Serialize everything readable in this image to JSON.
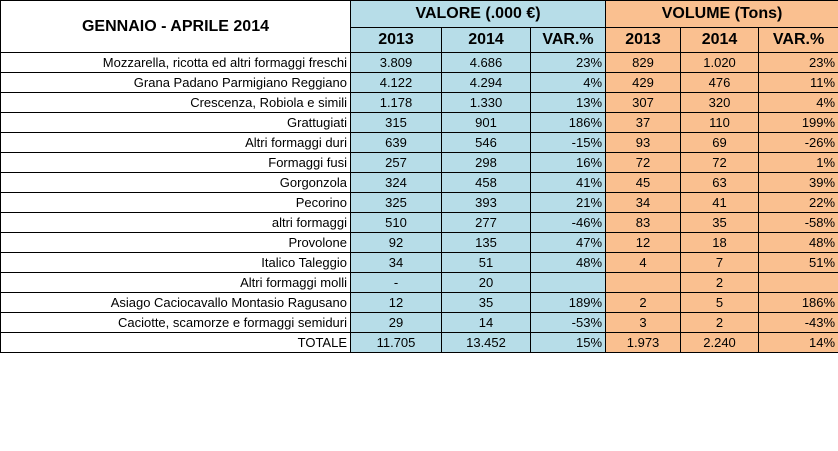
{
  "title": "GENNAIO - APRILE 2014",
  "groups": {
    "valore": "VALORE (.000 €)",
    "volume": "VOLUME (Tons)"
  },
  "subheaders": {
    "valore": [
      "2013",
      "2014",
      "VAR.%"
    ],
    "volume": [
      "2013",
      "2014",
      "VAR.%"
    ]
  },
  "rows": [
    {
      "label": "Mozzarella, ricotta ed altri formaggi freschi",
      "val_2013": "3.809",
      "val_2014": "4.686",
      "val_var": "23%",
      "vol_2013": "829",
      "vol_2014": "1.020",
      "vol_var": "23%"
    },
    {
      "label": "Grana Padano Parmigiano Reggiano",
      "val_2013": "4.122",
      "val_2014": "4.294",
      "val_var": "4%",
      "vol_2013": "429",
      "vol_2014": "476",
      "vol_var": "11%"
    },
    {
      "label": "Crescenza, Robiola e simili",
      "val_2013": "1.178",
      "val_2014": "1.330",
      "val_var": "13%",
      "vol_2013": "307",
      "vol_2014": "320",
      "vol_var": "4%"
    },
    {
      "label": "Grattugiati",
      "val_2013": "315",
      "val_2014": "901",
      "val_var": "186%",
      "vol_2013": "37",
      "vol_2014": "110",
      "vol_var": "199%"
    },
    {
      "label": "Altri formaggi duri",
      "val_2013": "639",
      "val_2014": "546",
      "val_var": "-15%",
      "vol_2013": "93",
      "vol_2014": "69",
      "vol_var": "-26%"
    },
    {
      "label": "Formaggi fusi",
      "val_2013": "257",
      "val_2014": "298",
      "val_var": "16%",
      "vol_2013": "72",
      "vol_2014": "72",
      "vol_var": "1%"
    },
    {
      "label": "Gorgonzola",
      "val_2013": "324",
      "val_2014": "458",
      "val_var": "41%",
      "vol_2013": "45",
      "vol_2014": "63",
      "vol_var": "39%"
    },
    {
      "label": "Pecorino",
      "val_2013": "325",
      "val_2014": "393",
      "val_var": "21%",
      "vol_2013": "34",
      "vol_2014": "41",
      "vol_var": "22%"
    },
    {
      "label": "altri formaggi",
      "val_2013": "510",
      "val_2014": "277",
      "val_var": "-46%",
      "vol_2013": "83",
      "vol_2014": "35",
      "vol_var": "-58%"
    },
    {
      "label": "Provolone",
      "val_2013": "92",
      "val_2014": "135",
      "val_var": "47%",
      "vol_2013": "12",
      "vol_2014": "18",
      "vol_var": "48%"
    },
    {
      "label": "Italico Taleggio",
      "val_2013": "34",
      "val_2014": "51",
      "val_var": "48%",
      "vol_2013": "4",
      "vol_2014": "7",
      "vol_var": "51%"
    },
    {
      "label": "Altri formaggi molli",
      "val_2013": "-",
      "val_2014": "20",
      "val_var": "",
      "vol_2013": "",
      "vol_2014": "2",
      "vol_var": ""
    },
    {
      "label": "Asiago Caciocavallo Montasio Ragusano",
      "val_2013": "12",
      "val_2014": "35",
      "val_var": "189%",
      "vol_2013": "2",
      "vol_2014": "5",
      "vol_var": "186%"
    },
    {
      "label": "Caciotte, scamorze e formaggi semiduri",
      "val_2013": "29",
      "val_2014": "14",
      "val_var": "-53%",
      "vol_2013": "3",
      "vol_2014": "2",
      "vol_var": "-43%"
    },
    {
      "label": "TOTALE",
      "val_2013": "11.705",
      "val_2014": "13.452",
      "val_var": "15%",
      "vol_2013": "1.973",
      "vol_2014": "2.240",
      "vol_var": "14%"
    }
  ],
  "colors": {
    "valore_fill": "#b7dde8",
    "volume_fill": "#fac090"
  }
}
